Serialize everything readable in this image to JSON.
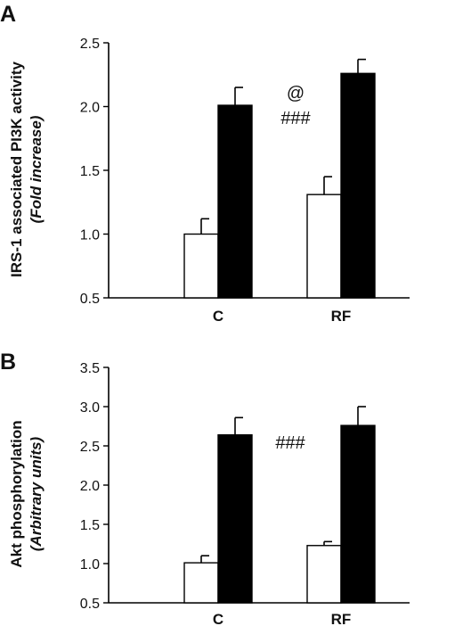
{
  "chart_data": [
    {
      "panel": "A",
      "type": "bar",
      "categories": [
        "C",
        "RF"
      ],
      "series": [
        {
          "color": "#ffffff",
          "values": [
            1.0,
            1.31
          ],
          "errors": [
            0.12,
            0.14
          ]
        },
        {
          "color": "#000000",
          "values": [
            2.01,
            2.26
          ],
          "errors": [
            0.14,
            0.11
          ]
        }
      ],
      "ylabel": "IRS-1 associated PI3K activity",
      "ylabel_sub": "(Fold increase)",
      "ylim": [
        0.5,
        2.5
      ],
      "yticks": [
        "0.5",
        "1.0",
        "1.5",
        "2.0",
        "2.5"
      ],
      "annotations": [
        "@",
        "###"
      ],
      "grid": false
    },
    {
      "panel": "B",
      "type": "bar",
      "categories": [
        "C",
        "RF"
      ],
      "series": [
        {
          "color": "#ffffff",
          "values": [
            1.01,
            1.23
          ],
          "errors": [
            0.09,
            0.05
          ]
        },
        {
          "color": "#000000",
          "values": [
            2.64,
            2.76
          ],
          "errors": [
            0.22,
            0.24
          ]
        }
      ],
      "ylabel": "Akt phosphorylation",
      "ylabel_sub": "(Arbitrary units)",
      "ylim": [
        0.5,
        3.5
      ],
      "yticks": [
        "0.5",
        "1.0",
        "1.5",
        "2.0",
        "2.5",
        "3.0",
        "3.5"
      ],
      "annotations": [
        "###"
      ],
      "grid": false
    }
  ]
}
